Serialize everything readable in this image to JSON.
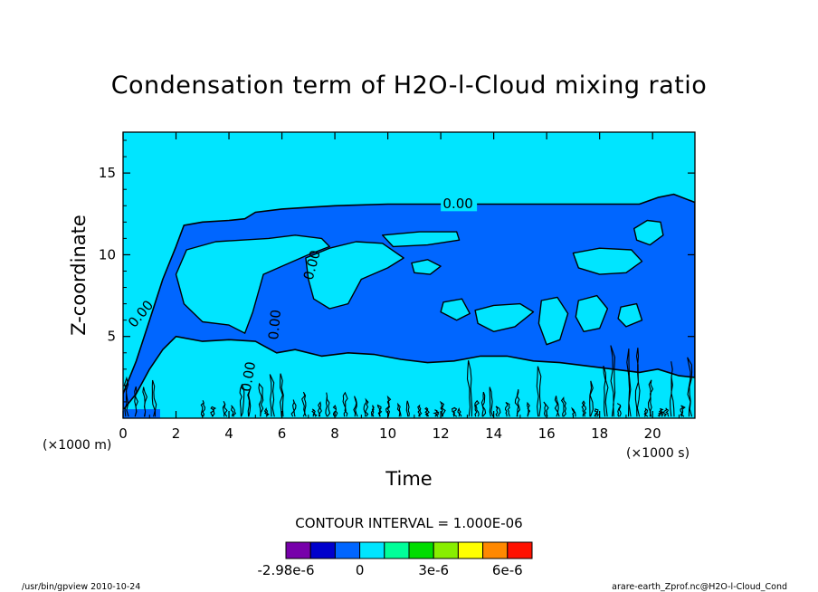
{
  "chart_data": {
    "type": "heatmap",
    "title": "Condensation term of H2O-l-Cloud mixing ratio",
    "xlabel": "Time",
    "ylabel": "Z-coordinate",
    "x_unit": "(×1000 s)",
    "y_unit": "(×1000 m)",
    "xlim": [
      0,
      21.6
    ],
    "ylim": [
      0,
      17.5
    ],
    "x_ticks": [
      0,
      2,
      4,
      6,
      8,
      10,
      12,
      14,
      16,
      18,
      20
    ],
    "y_ticks": [
      5,
      10,
      15
    ],
    "contour_label": "0.00",
    "contour_interval_text": "CONTOUR INTERVAL = 1.000E-06",
    "colorbar": {
      "colors": [
        "#7700aa",
        "#0000cc",
        "#0066ff",
        "#00e5ff",
        "#00ff99",
        "#00dd00",
        "#88ee00",
        "#ffff00",
        "#ff8800",
        "#ff1100"
      ],
      "labels": [
        "-2.98e-6",
        "0",
        "3e-6",
        "6e-6"
      ],
      "label_positions": [
        0,
        3,
        6,
        9
      ]
    },
    "cloud_layer": {
      "top": [
        [
          0.0,
          1.5
        ],
        [
          0.5,
          3.5
        ],
        [
          1.0,
          6.0
        ],
        [
          1.5,
          8.5
        ],
        [
          2.0,
          10.5
        ],
        [
          2.3,
          11.8
        ],
        [
          3.0,
          12.0
        ],
        [
          4.0,
          12.1
        ],
        [
          4.6,
          12.2
        ],
        [
          5.0,
          12.6
        ],
        [
          6.0,
          12.8
        ],
        [
          7.0,
          12.9
        ],
        [
          8.0,
          13.0
        ],
        [
          10.0,
          13.1
        ],
        [
          12.0,
          13.1
        ],
        [
          14.0,
          13.1
        ],
        [
          16.0,
          13.1
        ],
        [
          17.0,
          13.1
        ],
        [
          18.0,
          13.1
        ],
        [
          19.5,
          13.1
        ],
        [
          20.2,
          13.5
        ],
        [
          20.8,
          13.7
        ],
        [
          21.6,
          13.2
        ]
      ],
      "bottom": [
        [
          21.6,
          2.5
        ],
        [
          21.0,
          2.6
        ],
        [
          20.2,
          3.0
        ],
        [
          19.5,
          2.8
        ],
        [
          18.5,
          3.0
        ],
        [
          17.5,
          3.2
        ],
        [
          16.5,
          3.4
        ],
        [
          15.5,
          3.5
        ],
        [
          14.5,
          3.8
        ],
        [
          13.5,
          3.8
        ],
        [
          12.5,
          3.5
        ],
        [
          11.5,
          3.4
        ],
        [
          10.5,
          3.6
        ],
        [
          9.5,
          3.9
        ],
        [
          8.5,
          4.0
        ],
        [
          7.5,
          3.8
        ],
        [
          6.5,
          4.2
        ],
        [
          5.8,
          4.0
        ],
        [
          5.0,
          4.7
        ],
        [
          4.0,
          4.8
        ],
        [
          3.0,
          4.7
        ],
        [
          2.0,
          5.0
        ],
        [
          1.5,
          4.2
        ],
        [
          1.0,
          3.0
        ],
        [
          0.5,
          1.5
        ],
        [
          0.0,
          0.5
        ]
      ]
    },
    "inner_regions": [
      [
        [
          2.4,
          10.3
        ],
        [
          3.5,
          10.8
        ],
        [
          4.5,
          10.9
        ],
        [
          5.5,
          11.0
        ],
        [
          6.5,
          11.2
        ],
        [
          7.5,
          11.0
        ],
        [
          7.8,
          10.5
        ],
        [
          7.0,
          10.0
        ],
        [
          6.0,
          9.3
        ],
        [
          5.3,
          8.8
        ],
        [
          4.9,
          6.5
        ],
        [
          4.6,
          5.2
        ],
        [
          4.0,
          5.7
        ],
        [
          3.0,
          5.9
        ],
        [
          2.3,
          7.0
        ],
        [
          2.0,
          8.8
        ]
      ],
      [
        [
          6.9,
          9.8
        ],
        [
          7.8,
          10.4
        ],
        [
          8.8,
          10.8
        ],
        [
          9.8,
          10.7
        ],
        [
          10.6,
          9.8
        ],
        [
          10.0,
          9.2
        ],
        [
          9.0,
          8.5
        ],
        [
          8.5,
          7.0
        ],
        [
          7.8,
          6.7
        ],
        [
          7.2,
          7.3
        ],
        [
          7.0,
          8.5
        ]
      ],
      [
        [
          9.8,
          11.2
        ],
        [
          11.2,
          11.4
        ],
        [
          12.6,
          11.4
        ],
        [
          12.7,
          10.9
        ],
        [
          11.5,
          10.6
        ],
        [
          10.2,
          10.5
        ]
      ],
      [
        [
          10.9,
          9.5
        ],
        [
          11.5,
          9.7
        ],
        [
          12.0,
          9.3
        ],
        [
          11.6,
          8.8
        ],
        [
          11.0,
          8.9
        ]
      ],
      [
        [
          17.0,
          10.1
        ],
        [
          18.0,
          10.4
        ],
        [
          19.2,
          10.3
        ],
        [
          19.6,
          9.6
        ],
        [
          19.0,
          8.9
        ],
        [
          18.0,
          8.8
        ],
        [
          17.2,
          9.2
        ]
      ],
      [
        [
          19.3,
          11.6
        ],
        [
          19.8,
          12.1
        ],
        [
          20.3,
          12.0
        ],
        [
          20.4,
          11.2
        ],
        [
          19.9,
          10.6
        ],
        [
          19.4,
          10.9
        ]
      ],
      [
        [
          13.3,
          6.6
        ],
        [
          14.0,
          6.9
        ],
        [
          15.0,
          7.0
        ],
        [
          15.5,
          6.5
        ],
        [
          14.8,
          5.6
        ],
        [
          14.0,
          5.3
        ],
        [
          13.4,
          5.8
        ]
      ],
      [
        [
          15.8,
          7.2
        ],
        [
          16.4,
          7.4
        ],
        [
          16.8,
          6.4
        ],
        [
          16.5,
          4.8
        ],
        [
          16.0,
          4.5
        ],
        [
          15.7,
          5.8
        ]
      ],
      [
        [
          17.2,
          7.2
        ],
        [
          17.9,
          7.5
        ],
        [
          18.3,
          6.7
        ],
        [
          18.0,
          5.5
        ],
        [
          17.4,
          5.3
        ],
        [
          17.1,
          6.2
        ]
      ],
      [
        [
          12.1,
          7.1
        ],
        [
          12.8,
          7.3
        ],
        [
          13.1,
          6.4
        ],
        [
          12.6,
          6.0
        ],
        [
          12.0,
          6.5
        ]
      ],
      [
        [
          18.8,
          6.8
        ],
        [
          19.4,
          7.0
        ],
        [
          19.6,
          6.0
        ],
        [
          19.0,
          5.6
        ],
        [
          18.7,
          6.1
        ]
      ]
    ]
  },
  "footer": {
    "left_text": "/usr/bin/gpview  2010-10-24",
    "right_text": "arare-earth_Zprof.nc@H2O-l-Cloud_Cond"
  }
}
